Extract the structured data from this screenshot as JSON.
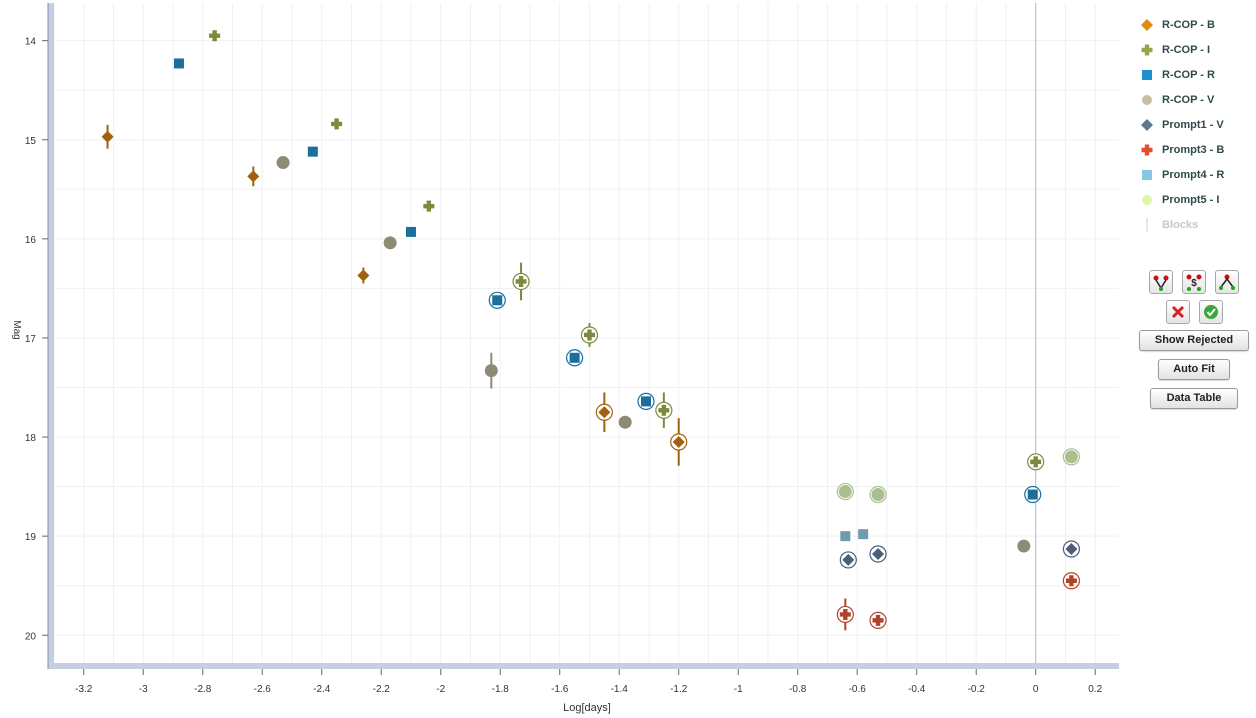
{
  "chart_data": {
    "type": "scatter",
    "xlabel": "Log[days]",
    "ylabel": "Mag",
    "xlim": [
      -3.3,
      0.28
    ],
    "ylim": [
      20.28,
      13.62
    ],
    "y_inverted": true,
    "xticks": [
      "-3.2",
      "-3",
      "-2.8",
      "-2.6",
      "-2.4",
      "-2.2",
      "-2",
      "-1.8",
      "-1.6",
      "-1.4",
      "-1.2",
      "-1",
      "-0.8",
      "-0.6",
      "-0.4",
      "-0.2",
      "0",
      "0.2"
    ],
    "yticks": [
      "14",
      "15",
      "16",
      "17",
      "18",
      "19",
      "20"
    ],
    "grid": true,
    "vertical_line_x": 0,
    "legend_position": "right",
    "series": [
      {
        "name": "R-COP - B",
        "marker": "diamond",
        "color": "#a0620e",
        "legend_color": "#e08a12",
        "points": [
          [
            -3.12,
            14.97,
            0.12,
            false
          ],
          [
            -2.63,
            15.37,
            0.1,
            false
          ],
          [
            -2.26,
            16.37,
            0.08,
            false
          ],
          [
            -1.45,
            17.75,
            0.2,
            true
          ],
          [
            -1.2,
            18.05,
            0.24,
            true
          ]
        ]
      },
      {
        "name": "R-COP - I",
        "marker": "plus",
        "color": "#7c8a3a",
        "legend_color": "#93a84a",
        "points": [
          [
            -2.76,
            13.95,
            0,
            false
          ],
          [
            -2.35,
            14.84,
            0,
            false
          ],
          [
            -2.04,
            15.67,
            0,
            false
          ],
          [
            -1.73,
            16.43,
            0.19,
            true
          ],
          [
            -1.5,
            16.97,
            0.12,
            true
          ],
          [
            -1.25,
            17.73,
            0.18,
            true
          ],
          [
            0.0,
            18.25,
            0.08,
            true
          ]
        ]
      },
      {
        "name": "R-COP - R",
        "marker": "square",
        "color": "#1c6e9c",
        "legend_color": "#1e8fcf",
        "points": [
          [
            -2.88,
            14.23,
            0,
            false
          ],
          [
            -2.43,
            15.12,
            0,
            false
          ],
          [
            -2.1,
            15.93,
            0,
            false
          ],
          [
            -1.81,
            16.62,
            0,
            true
          ],
          [
            -1.55,
            17.2,
            0,
            true
          ],
          [
            -1.31,
            17.64,
            0,
            true
          ],
          [
            -0.01,
            18.58,
            0,
            true
          ]
        ]
      },
      {
        "name": "R-COP - V",
        "marker": "circle",
        "color": "#8d8b73",
        "legend_color": "#c3bfa0",
        "points": [
          [
            -2.53,
            15.23,
            0,
            false
          ],
          [
            -2.17,
            16.04,
            0,
            false
          ],
          [
            -1.83,
            17.33,
            0.18,
            false
          ],
          [
            -1.38,
            17.85,
            0.06,
            false
          ],
          [
            -0.04,
            19.1,
            0,
            false
          ]
        ]
      },
      {
        "name": "Prompt1 - V",
        "marker": "diamond",
        "color": "#4a6078",
        "legend_color": "#5c7a94",
        "points": [
          [
            -0.63,
            19.24,
            0,
            true
          ],
          [
            -0.53,
            19.18,
            0,
            true
          ],
          [
            0.12,
            19.13,
            0,
            true
          ]
        ]
      },
      {
        "name": "Prompt3 - B",
        "marker": "plus",
        "color": "#b0432a",
        "legend_color": "#e05030",
        "points": [
          [
            -0.64,
            19.79,
            0.16,
            true
          ],
          [
            -0.53,
            19.85,
            0.08,
            true
          ],
          [
            0.12,
            19.45,
            0.06,
            true
          ]
        ]
      },
      {
        "name": "Prompt4 - R",
        "marker": "square",
        "color": "#6f9cae",
        "legend_color": "#86c8e0",
        "points": [
          [
            -0.64,
            19.0,
            0,
            false
          ],
          [
            -0.58,
            18.98,
            0,
            false
          ]
        ]
      },
      {
        "name": "Prompt5 - I",
        "marker": "circle",
        "color": "#a9c08e",
        "legend_color": "#def5a4",
        "points": [
          [
            -0.64,
            18.55,
            0,
            true
          ],
          [
            -0.53,
            18.58,
            0,
            true
          ],
          [
            0.12,
            18.2,
            0,
            true
          ]
        ]
      },
      {
        "name": "Blocks",
        "marker": "line",
        "color": "#e0e4c0",
        "legend_color": "#e0e4c0",
        "disabled": true,
        "points": []
      }
    ]
  },
  "controls": {
    "show_rejected_label": "Show Rejected",
    "auto_fit_label": "Auto Fit",
    "data_table_label": "Data Table",
    "icons": [
      "fit-down-icon",
      "fit-zero-icon",
      "fit-up-icon",
      "reject-icon",
      "accept-icon"
    ]
  }
}
